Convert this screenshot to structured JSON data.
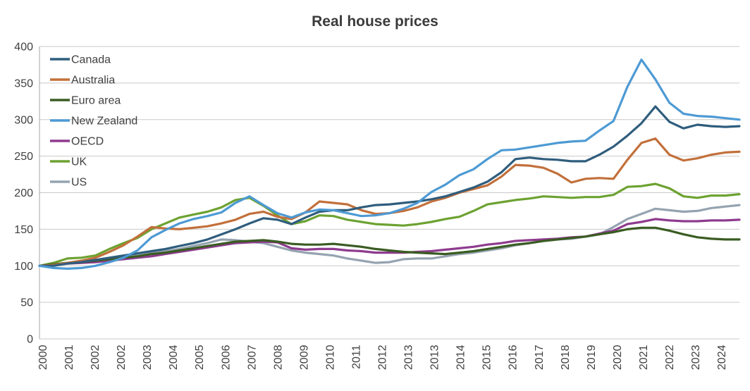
{
  "title": "Real house prices",
  "axes": {
    "y_tick_labels": [
      "0",
      "50",
      "100",
      "150",
      "200",
      "250",
      "300",
      "350",
      "400"
    ],
    "x_tick_labels": [
      "2000",
      "2001",
      "2002",
      "2002",
      "2003",
      "2004",
      "2005",
      "2006",
      "2007",
      "2008",
      "2009",
      "2010",
      "2011",
      "2012",
      "2013",
      "2013",
      "2014",
      "2015",
      "2016",
      "2017",
      "2018",
      "2019",
      "2020",
      "2021",
      "2022",
      "2023",
      "2024"
    ]
  },
  "styles": {
    "gridline_color": "#c9c9c9",
    "axis_line_color": "#a6a6a6",
    "text_color": "#404040",
    "title_color": "#3b3b3b",
    "line_width": 3.2
  },
  "legend": {
    "position": "top-left-inside",
    "items": [
      "Canada",
      "Australia",
      "Euro area",
      "New Zealand",
      "OECD",
      "UK",
      "US"
    ]
  },
  "chart_data": {
    "type": "line",
    "title": "Real house prices",
    "xlabel": "",
    "ylabel": "",
    "ylim": [
      0,
      400
    ],
    "y_tick_step": 50,
    "grid": "horizontal",
    "legend_position": "top-left-inside",
    "x_tick_labels": [
      "2000",
      "2001",
      "2002",
      "2002",
      "2003",
      "2004",
      "2005",
      "2006",
      "2007",
      "2008",
      "2009",
      "2010",
      "2011",
      "2012",
      "2013",
      "2013",
      "2014",
      "2015",
      "2016",
      "2017",
      "2018",
      "2019",
      "2020",
      "2021",
      "2022",
      "2023",
      "2024"
    ],
    "x": [
      2000,
      2000.5,
      2001,
      2001.5,
      2002,
      2002.5,
      2003,
      2003.5,
      2004,
      2004.5,
      2005,
      2005.5,
      2006,
      2006.5,
      2007,
      2007.5,
      2008,
      2008.5,
      2009,
      2009.5,
      2010,
      2010.5,
      2011,
      2011.5,
      2012,
      2012.5,
      2013,
      2013.5,
      2014,
      2014.5,
      2015,
      2015.5,
      2016,
      2016.5,
      2017,
      2017.5,
      2018,
      2018.5,
      2019,
      2019.5,
      2020,
      2020.5,
      2021,
      2021.5,
      2022,
      2022.5,
      2023,
      2023.5,
      2024,
      2024.5,
      2025
    ],
    "series": [
      {
        "name": "Canada",
        "color": "#2f5d7d",
        "values": [
          100,
          100,
          103,
          105,
          108,
          111,
          114,
          117,
          120,
          123,
          127,
          131,
          136,
          143,
          150,
          158,
          165,
          163,
          157,
          166,
          174,
          176,
          176,
          180,
          183,
          184,
          186,
          188,
          191,
          195,
          201,
          207,
          215,
          228,
          246,
          248,
          246,
          245,
          243,
          243,
          252,
          263,
          278,
          295,
          318,
          297,
          288,
          293,
          291,
          290,
          291
        ]
      },
      {
        "name": "Australia",
        "color": "#c2703b",
        "values": [
          100,
          101,
          104,
          107,
          111,
          119,
          128,
          140,
          153,
          151,
          150,
          152,
          154,
          158,
          163,
          171,
          174,
          167,
          164,
          173,
          188,
          186,
          184,
          176,
          171,
          172,
          175,
          180,
          188,
          193,
          200,
          205,
          210,
          222,
          238,
          237,
          234,
          226,
          214,
          219,
          220,
          219,
          245,
          268,
          274,
          252,
          244,
          247,
          252,
          255,
          256
        ]
      },
      {
        "name": "Euro area",
        "color": "#3a5c22",
        "values": [
          100,
          102,
          104,
          105,
          107,
          109,
          111,
          113,
          116,
          118,
          121,
          124,
          127,
          130,
          133,
          134,
          135,
          133,
          130,
          129,
          129,
          130,
          128,
          126,
          123,
          121,
          119,
          118,
          117,
          116,
          118,
          120,
          123,
          126,
          129,
          131,
          134,
          136,
          138,
          140,
          143,
          146,
          150,
          152,
          152,
          148,
          143,
          139,
          137,
          136,
          136
        ]
      },
      {
        "name": "New Zealand",
        "color": "#4d9ad4",
        "values": [
          100,
          97,
          96,
          97,
          100,
          105,
          111,
          121,
          139,
          149,
          158,
          164,
          168,
          173,
          186,
          195,
          183,
          172,
          166,
          173,
          177,
          176,
          172,
          168,
          169,
          172,
          178,
          186,
          201,
          211,
          224,
          232,
          246,
          258,
          259,
          262,
          265,
          268,
          270,
          271,
          285,
          298,
          345,
          382,
          355,
          323,
          308,
          305,
          304,
          302,
          300
        ]
      },
      {
        "name": "OECD",
        "color": "#8e3b8e",
        "values": [
          100,
          101,
          103,
          104,
          105,
          107,
          109,
          111,
          113,
          116,
          119,
          122,
          125,
          128,
          131,
          132,
          133,
          132,
          124,
          122,
          123,
          123,
          121,
          120,
          118,
          118,
          118,
          119,
          120,
          122,
          124,
          126,
          129,
          131,
          134,
          135,
          136,
          137,
          139,
          140,
          144,
          148,
          157,
          160,
          164,
          162,
          161,
          161,
          162,
          162,
          163
        ]
      },
      {
        "name": "UK",
        "color": "#6da232",
        "values": [
          100,
          104,
          110,
          111,
          114,
          123,
          131,
          138,
          150,
          158,
          166,
          170,
          174,
          180,
          190,
          193,
          182,
          169,
          157,
          161,
          169,
          168,
          163,
          160,
          157,
          156,
          155,
          157,
          160,
          164,
          167,
          175,
          184,
          187,
          190,
          192,
          195,
          194,
          193,
          194,
          194,
          197,
          208,
          209,
          212,
          206,
          195,
          193,
          196,
          196,
          198
        ]
      },
      {
        "name": "US",
        "color": "#95a3b0",
        "values": [
          100,
          102,
          104,
          105,
          106,
          108,
          111,
          114,
          117,
          120,
          123,
          127,
          131,
          136,
          135,
          133,
          131,
          126,
          121,
          118,
          116,
          114,
          110,
          107,
          104,
          105,
          109,
          110,
          110,
          113,
          116,
          118,
          121,
          124,
          128,
          131,
          134,
          136,
          137,
          140,
          143,
          153,
          164,
          171,
          178,
          176,
          174,
          175,
          179,
          181,
          183
        ]
      }
    ]
  }
}
